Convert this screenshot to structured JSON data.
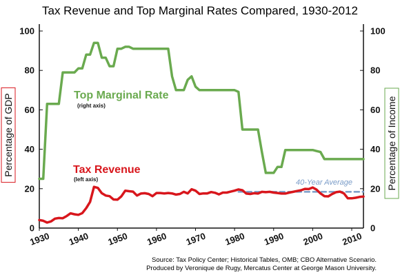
{
  "chart_data": {
    "type": "line",
    "title": "Tax Revenue and Top Marginal Rates Compared, 1930-2012",
    "ylabel_left": "Percentage of GDP",
    "ylabel_right": "Percentage of Income",
    "ylim_left": [
      0,
      100
    ],
    "ylim_right": [
      0,
      100
    ],
    "xlim": [
      1930,
      2013
    ],
    "x_ticks": [
      1930,
      1940,
      1950,
      1960,
      1970,
      1980,
      1990,
      2000,
      2010
    ],
    "y_ticks": [
      0,
      20,
      40,
      60,
      80,
      100
    ],
    "grid": false,
    "colors": {
      "marginal": "#6aaa4f",
      "revenue": "#d8161c",
      "average": "#7a9cc8",
      "frame_left": "#d8161c",
      "frame_right": "#6aaa4f"
    },
    "series": [
      {
        "name": "Top Marginal Rate",
        "note": "(right axis)",
        "axis": "right",
        "x": [
          1930,
          1931,
          1932,
          1933,
          1934,
          1935,
          1936,
          1937,
          1938,
          1939,
          1940,
          1941,
          1942,
          1943,
          1944,
          1945,
          1946,
          1947,
          1948,
          1949,
          1950,
          1951,
          1952,
          1953,
          1954,
          1955,
          1956,
          1957,
          1958,
          1959,
          1960,
          1961,
          1962,
          1963,
          1964,
          1965,
          1966,
          1967,
          1968,
          1969,
          1970,
          1971,
          1972,
          1973,
          1974,
          1975,
          1976,
          1977,
          1978,
          1979,
          1980,
          1981,
          1982,
          1983,
          1984,
          1985,
          1986,
          1987,
          1988,
          1989,
          1990,
          1991,
          1992,
          1993,
          1994,
          1995,
          1996,
          1997,
          1998,
          1999,
          2000,
          2001,
          2002,
          2003,
          2004,
          2005,
          2006,
          2007,
          2008,
          2009,
          2010,
          2011,
          2012,
          2013
        ],
        "values": [
          25,
          25,
          63,
          63,
          63,
          63,
          79,
          79,
          79,
          79,
          81,
          81,
          88,
          88,
          94,
          94,
          86.45,
          86.45,
          82.13,
          82.13,
          91,
          91,
          92,
          92,
          91,
          91,
          91,
          91,
          91,
          91,
          91,
          91,
          91,
          91,
          77,
          70,
          70,
          70,
          75.25,
          77,
          71.75,
          70,
          70,
          70,
          70,
          70,
          70,
          70,
          70,
          70,
          70,
          69.13,
          50,
          50,
          50,
          50,
          50,
          38.5,
          28,
          28,
          28,
          31,
          31,
          39.6,
          39.6,
          39.6,
          39.6,
          39.6,
          39.6,
          39.6,
          39.6,
          39.1,
          38.6,
          35,
          35,
          35,
          35,
          35,
          35,
          35,
          35,
          35,
          35,
          35
        ]
      },
      {
        "name": "Tax Revenue",
        "note": "(left axis)",
        "axis": "left",
        "x": [
          1930,
          1931,
          1932,
          1933,
          1934,
          1935,
          1936,
          1937,
          1938,
          1939,
          1940,
          1941,
          1942,
          1943,
          1944,
          1945,
          1946,
          1947,
          1948,
          1949,
          1950,
          1951,
          1952,
          1953,
          1954,
          1955,
          1956,
          1957,
          1958,
          1959,
          1960,
          1961,
          1962,
          1963,
          1964,
          1965,
          1966,
          1967,
          1968,
          1969,
          1970,
          1971,
          1972,
          1973,
          1974,
          1975,
          1976,
          1977,
          1978,
          1979,
          1980,
          1981,
          1982,
          1983,
          1984,
          1985,
          1986,
          1987,
          1988,
          1989,
          1990,
          1991,
          1992,
          1993,
          1994,
          1995,
          1996,
          1997,
          1998,
          1999,
          2000,
          2001,
          2002,
          2003,
          2004,
          2005,
          2006,
          2007,
          2008,
          2009,
          2010,
          2011,
          2012,
          2013
        ],
        "values": [
          4.1,
          3.7,
          2.8,
          3.4,
          4.8,
          5.1,
          5.0,
          6.1,
          7.5,
          7.0,
          6.7,
          7.6,
          10.1,
          13.3,
          20.9,
          20.4,
          17.7,
          16.5,
          16.2,
          14.5,
          14.4,
          16.1,
          19.0,
          18.7,
          18.5,
          16.5,
          17.5,
          17.7,
          17.3,
          16.2,
          17.8,
          17.8,
          17.6,
          17.8,
          17.6,
          17.0,
          17.3,
          18.4,
          17.6,
          19.7,
          19.0,
          17.3,
          17.6,
          17.6,
          18.3,
          17.9,
          17.1,
          18.0,
          18.0,
          18.5,
          19.0,
          19.6,
          19.2,
          17.5,
          17.3,
          17.7,
          17.5,
          18.4,
          18.2,
          18.4,
          18.0,
          17.8,
          17.5,
          17.5,
          18.0,
          18.4,
          18.8,
          19.2,
          19.9,
          19.8,
          20.6,
          19.5,
          17.6,
          16.2,
          16.1,
          17.3,
          18.2,
          18.5,
          17.6,
          15.1,
          15.1,
          15.4,
          15.8,
          16.0
        ]
      },
      {
        "name": "40-Year Average",
        "axis": "left",
        "style": "dashed",
        "x": [
          1981,
          2013
        ],
        "values": [
          18.4,
          18.4
        ]
      }
    ],
    "annotations": {
      "marginal_label": "Top Marginal Rate",
      "marginal_note": "(right axis)",
      "revenue_label": "Tax Revenue",
      "revenue_note": "(left axis)",
      "average_label": "40-Year Average"
    }
  },
  "source_lines": [
    "Source: Tax Policy Center; Historical Tables, OMB; CBO Alternative Scenario.",
    "Produced by Veronique de Rugy, Mercatus Center at George Mason University."
  ]
}
